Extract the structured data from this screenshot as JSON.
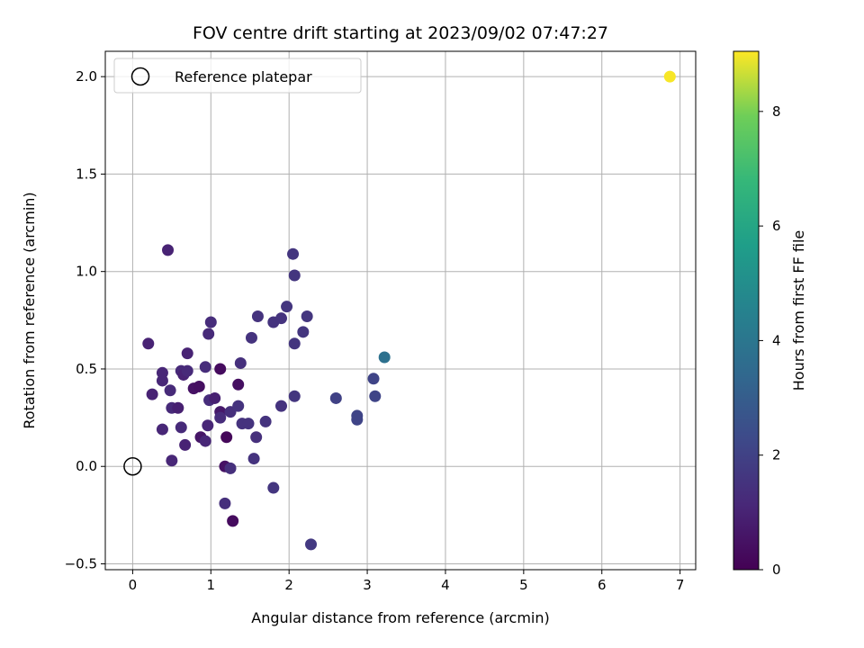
{
  "chart_data": {
    "type": "scatter",
    "title": "FOV centre drift starting at 2023/09/02 07:47:27",
    "xlabel": "Angular distance from reference (arcmin)",
    "ylabel": "Rotation from reference (arcmin)",
    "xlim": [
      -0.35,
      7.2
    ],
    "ylim": [
      -0.53,
      2.13
    ],
    "xticks": [
      0,
      1,
      2,
      3,
      4,
      5,
      6,
      7
    ],
    "yticks": [
      -0.5,
      0.0,
      0.5,
      1.0,
      1.5,
      2.0
    ],
    "xtick_labels": [
      "0",
      "1",
      "2",
      "3",
      "4",
      "5",
      "6",
      "7"
    ],
    "ytick_labels": [
      "−0.5",
      "0.0",
      "0.5",
      "1.0",
      "1.5",
      "2.0"
    ],
    "grid": true,
    "legend": {
      "placement": "upper-left",
      "entries": [
        "Reference platepar"
      ]
    },
    "colorbar": {
      "label": "Hours from first FF file",
      "colormap": "viridis",
      "range": [
        0,
        9.05
      ],
      "ticks": [
        0,
        2,
        4,
        6,
        8
      ],
      "tick_labels": [
        "0",
        "2",
        "4",
        "6",
        "8"
      ]
    },
    "reference_point": {
      "x": 0.0,
      "y": 0.0
    },
    "points": [
      {
        "x": 0.2,
        "y": 0.63,
        "h": 1.0
      },
      {
        "x": 0.25,
        "y": 0.37,
        "h": 1.0
      },
      {
        "x": 0.38,
        "y": 0.48,
        "h": 1.1
      },
      {
        "x": 0.38,
        "y": 0.44,
        "h": 1.1
      },
      {
        "x": 0.38,
        "y": 0.19,
        "h": 1.1
      },
      {
        "x": 0.45,
        "y": 1.11,
        "h": 1.0
      },
      {
        "x": 0.48,
        "y": 0.39,
        "h": 1.2
      },
      {
        "x": 0.5,
        "y": 0.3,
        "h": 1.2
      },
      {
        "x": 0.5,
        "y": 0.03,
        "h": 1.1
      },
      {
        "x": 0.58,
        "y": 0.3,
        "h": 0.9
      },
      {
        "x": 0.62,
        "y": 0.49,
        "h": 1.2
      },
      {
        "x": 0.62,
        "y": 0.2,
        "h": 1.2
      },
      {
        "x": 0.65,
        "y": 0.47,
        "h": 1.0
      },
      {
        "x": 0.67,
        "y": 0.11,
        "h": 1.0
      },
      {
        "x": 0.7,
        "y": 0.49,
        "h": 1.2
      },
      {
        "x": 0.7,
        "y": 0.58,
        "h": 1.0
      },
      {
        "x": 0.78,
        "y": 0.4,
        "h": 0.5
      },
      {
        "x": 0.85,
        "y": 0.41,
        "h": 0.4
      },
      {
        "x": 0.87,
        "y": 0.15,
        "h": 0.6
      },
      {
        "x": 0.93,
        "y": 0.51,
        "h": 1.3
      },
      {
        "x": 0.93,
        "y": 0.13,
        "h": 1.1
      },
      {
        "x": 0.96,
        "y": 0.21,
        "h": 1.1
      },
      {
        "x": 0.97,
        "y": 0.68,
        "h": 1.2
      },
      {
        "x": 0.98,
        "y": 0.34,
        "h": 1.3
      },
      {
        "x": 1.0,
        "y": 0.74,
        "h": 1.3
      },
      {
        "x": 1.05,
        "y": 0.35,
        "h": 0.9
      },
      {
        "x": 1.12,
        "y": 0.5,
        "h": 0.3
      },
      {
        "x": 1.12,
        "y": 0.28,
        "h": 0.7
      },
      {
        "x": 1.12,
        "y": 0.25,
        "h": 1.3
      },
      {
        "x": 1.18,
        "y": -0.19,
        "h": 1.4
      },
      {
        "x": 1.18,
        "y": 0.0,
        "h": 0.5
      },
      {
        "x": 1.2,
        "y": 0.15,
        "h": 0.2
      },
      {
        "x": 1.25,
        "y": 0.28,
        "h": 1.4
      },
      {
        "x": 1.25,
        "y": -0.01,
        "h": 1.4
      },
      {
        "x": 1.28,
        "y": -0.28,
        "h": 0.3
      },
      {
        "x": 1.35,
        "y": 0.42,
        "h": 0.4
      },
      {
        "x": 1.35,
        "y": 0.31,
        "h": 1.5
      },
      {
        "x": 1.38,
        "y": 0.53,
        "h": 1.4
      },
      {
        "x": 1.4,
        "y": 0.22,
        "h": 1.5
      },
      {
        "x": 1.48,
        "y": 0.22,
        "h": 1.5
      },
      {
        "x": 1.52,
        "y": 0.66,
        "h": 1.5
      },
      {
        "x": 1.55,
        "y": 0.04,
        "h": 1.5
      },
      {
        "x": 1.58,
        "y": 0.15,
        "h": 1.4
      },
      {
        "x": 1.6,
        "y": 0.77,
        "h": 1.5
      },
      {
        "x": 1.7,
        "y": 0.23,
        "h": 1.5
      },
      {
        "x": 1.8,
        "y": 0.74,
        "h": 1.5
      },
      {
        "x": 1.8,
        "y": -0.11,
        "h": 1.6
      },
      {
        "x": 1.9,
        "y": 0.76,
        "h": 1.5
      },
      {
        "x": 1.9,
        "y": 0.31,
        "h": 1.5
      },
      {
        "x": 1.97,
        "y": 0.82,
        "h": 1.6
      },
      {
        "x": 2.05,
        "y": 1.09,
        "h": 1.6
      },
      {
        "x": 2.07,
        "y": 0.98,
        "h": 1.6
      },
      {
        "x": 2.07,
        "y": 0.63,
        "h": 1.6
      },
      {
        "x": 2.07,
        "y": 0.36,
        "h": 1.6
      },
      {
        "x": 2.18,
        "y": 0.69,
        "h": 1.6
      },
      {
        "x": 2.23,
        "y": 0.77,
        "h": 1.6
      },
      {
        "x": 2.28,
        "y": -0.4,
        "h": 1.7
      },
      {
        "x": 2.6,
        "y": 0.35,
        "h": 2.0
      },
      {
        "x": 2.87,
        "y": 0.26,
        "h": 2.1
      },
      {
        "x": 2.87,
        "y": 0.24,
        "h": 2.1
      },
      {
        "x": 3.08,
        "y": 0.45,
        "h": 2.1
      },
      {
        "x": 3.1,
        "y": 0.36,
        "h": 2.1
      },
      {
        "x": 3.22,
        "y": 0.56,
        "h": 3.8
      },
      {
        "x": 6.87,
        "y": 2.0,
        "h": 9.0
      }
    ]
  }
}
